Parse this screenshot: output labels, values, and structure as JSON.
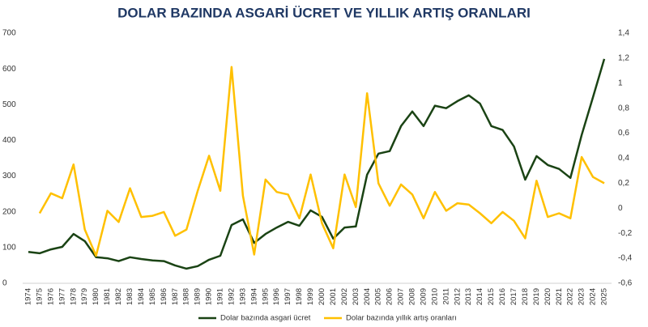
{
  "chart_data": {
    "type": "line",
    "title": "DOLAR BAZINDA ASGARİ ÜCRET VE YILLIK ARTIŞ ORANLARI",
    "categories": [
      "1974",
      "1975",
      "1976",
      "1977",
      "1978",
      "1979",
      "1980",
      "1981",
      "1982",
      "1983",
      "1984",
      "1985",
      "1986",
      "1987",
      "1988",
      "1989",
      "1990",
      "1991",
      "1992",
      "1993",
      "1994",
      "1995",
      "1996",
      "1997",
      "1998",
      "1999",
      "2000",
      "2001",
      "2002",
      "2003",
      "2004",
      "2005",
      "2006",
      "2007",
      "2008",
      "2009",
      "2010",
      "2011",
      "2012",
      "2013",
      "2014",
      "2015",
      "2016",
      "2017",
      "2018",
      "2019",
      "2020",
      "2021",
      "2022",
      "2023",
      "2024",
      "2025"
    ],
    "series": [
      {
        "name": "Dolar bazında asgari ücret",
        "color": "#1a4314",
        "values": [
          88,
          84,
          95,
          102,
          138,
          118,
          73,
          70,
          62,
          73,
          68,
          64,
          62,
          50,
          41,
          48,
          66,
          77,
          163,
          179,
          113,
          138,
          156,
          172,
          161,
          204,
          186,
          125,
          156,
          159,
          304,
          363,
          370,
          440,
          481,
          440,
          497,
          490,
          510,
          526,
          503,
          440,
          429,
          383,
          290,
          356,
          331,
          320,
          295,
          415,
          521,
          628
        ]
      },
      {
        "name": "Dolar bazında yıllık artış oranları",
        "color": "#ffc000",
        "axis": "y2",
        "values": [
          null,
          -0.04,
          0.12,
          0.08,
          0.35,
          -0.17,
          -0.38,
          -0.02,
          -0.11,
          0.16,
          -0.07,
          -0.06,
          -0.03,
          -0.22,
          -0.17,
          0.14,
          0.42,
          0.14,
          1.13,
          0.1,
          -0.37,
          0.23,
          0.13,
          0.11,
          -0.08,
          0.27,
          -0.12,
          -0.32,
          0.27,
          0.01,
          0.92,
          0.2,
          0.02,
          0.19,
          0.11,
          -0.08,
          0.13,
          -0.02,
          0.04,
          0.03,
          -0.04,
          -0.12,
          -0.03,
          -0.1,
          -0.24,
          0.22,
          -0.07,
          -0.04,
          -0.08,
          0.41,
          0.25,
          0.2
        ]
      }
    ],
    "ylim": [
      0,
      700
    ],
    "yticks": [
      0,
      100,
      200,
      300,
      400,
      500,
      600,
      700
    ],
    "y2lim": [
      -0.6,
      1.4
    ],
    "y2ticks": [
      {
        "value": -0.6,
        "label": "-0,6"
      },
      {
        "value": -0.4,
        "label": "-0,4"
      },
      {
        "value": -0.2,
        "label": "-0,2"
      },
      0,
      {
        "value": 0.2,
        "label": "0,2"
      },
      {
        "value": 0.4,
        "label": "0,4"
      },
      {
        "value": 0.6,
        "label": "0,6"
      },
      {
        "value": 0.8,
        "label": "0,8"
      },
      {
        "value": 1,
        "label": "1"
      },
      {
        "value": 1.2,
        "label": "1,2"
      },
      {
        "value": 1.4,
        "label": "1,4"
      }
    ],
    "legend": "bottom"
  }
}
